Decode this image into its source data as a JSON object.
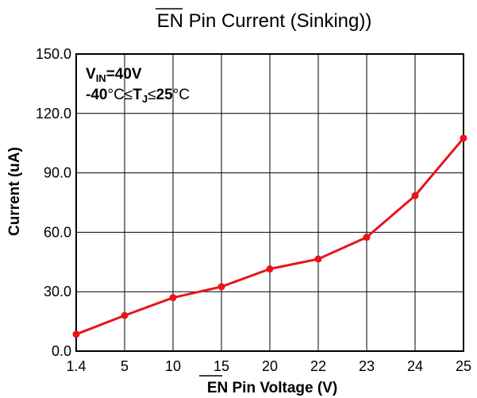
{
  "chart_data": {
    "type": "line",
    "title": {
      "prefix": "EN",
      "rest": " Pin Current (Sinking))"
    },
    "xlabel": {
      "prefix": "EN",
      "rest": " Pin Voltage (V)"
    },
    "ylabel": "Current (uA)",
    "categories": [
      "1.4",
      "5",
      "10",
      "15",
      "20",
      "22",
      "23",
      "24",
      "25"
    ],
    "x_scale": "categorical-evenly-spaced",
    "y_ticks": [
      "0.0",
      "30.0",
      "60.0",
      "90.0",
      "120.0",
      "150.0"
    ],
    "ylim": [
      0,
      150
    ],
    "grid": true,
    "series": [
      {
        "color": "#e8141b",
        "markers": true,
        "values": [
          8.5,
          18,
          27,
          32.5,
          41.5,
          46.5,
          57.5,
          78.5,
          107.5
        ]
      }
    ],
    "annotation": {
      "line1": {
        "v": "V",
        "sub": "IN",
        "rest": "=40V"
      },
      "line2": {
        "t1": "-40",
        "t2": "°C≤",
        "t3": "T",
        "t3sub": "J",
        "t4": "≤",
        "t5": "25",
        "t6": "°C"
      }
    }
  }
}
